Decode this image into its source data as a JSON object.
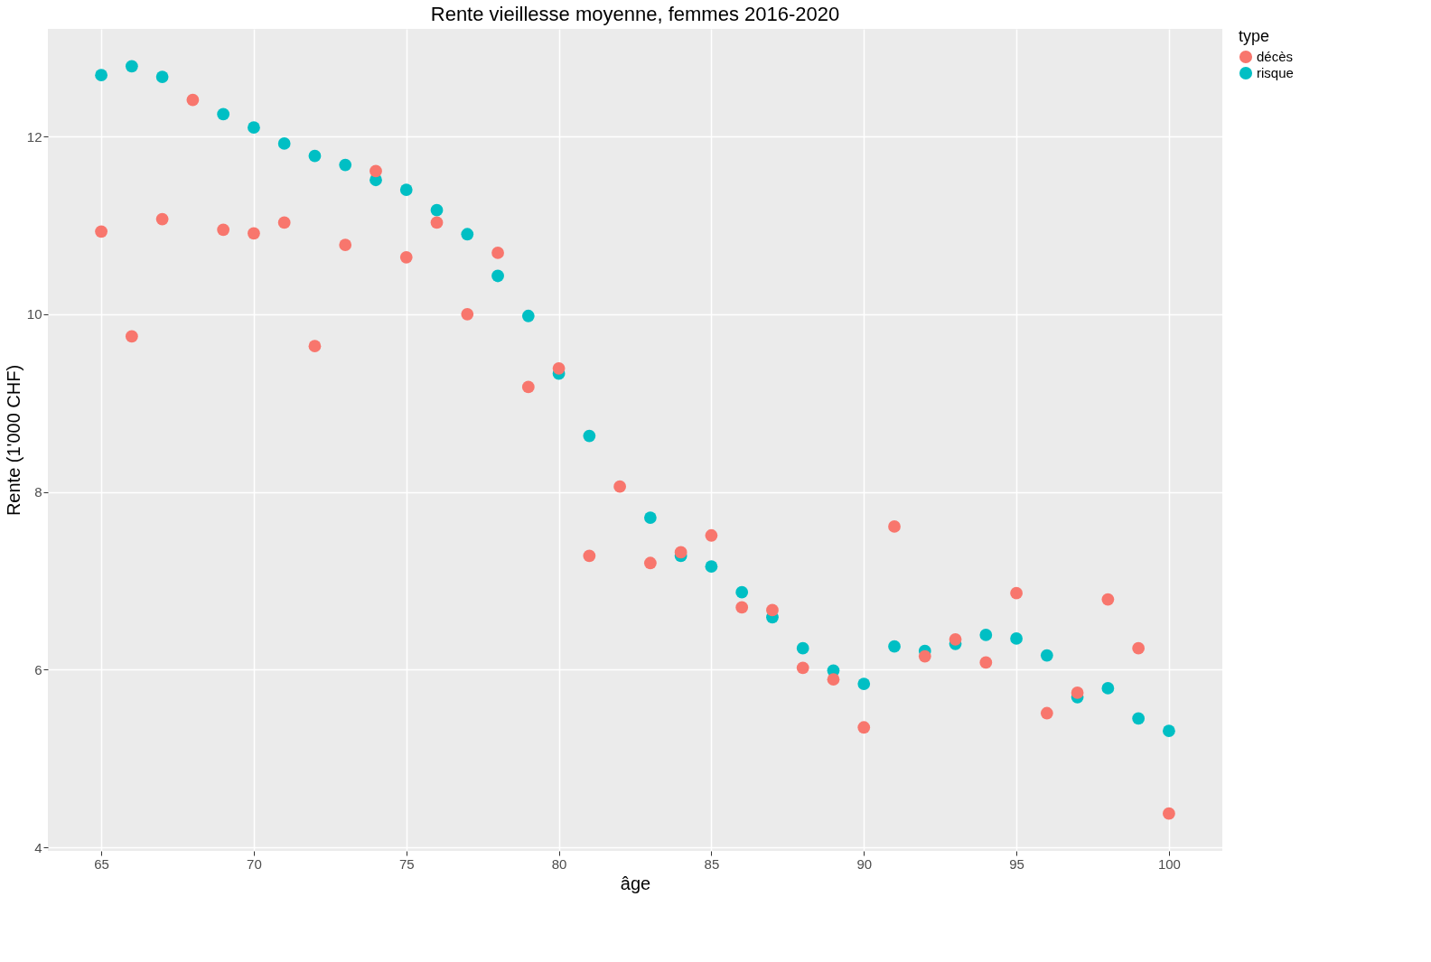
{
  "chart_data": {
    "type": "scatter",
    "title": "Rente vieillesse moyenne, femmes 2016-2020",
    "xlabel": "âge",
    "ylabel": "Rente (1'000 CHF)",
    "legend_title": "type",
    "x": [
      65,
      66,
      67,
      68,
      69,
      70,
      71,
      72,
      73,
      74,
      75,
      76,
      77,
      78,
      79,
      80,
      81,
      82,
      83,
      84,
      85,
      86,
      87,
      88,
      89,
      90,
      91,
      92,
      93,
      94,
      95,
      96,
      97,
      98,
      99,
      100
    ],
    "series": [
      {
        "name": "décès",
        "color": "#f8766d",
        "values": [
          10.93,
          9.75,
          11.07,
          12.41,
          10.95,
          10.91,
          11.03,
          9.64,
          10.78,
          11.61,
          10.64,
          11.03,
          10.0,
          10.69,
          9.18,
          9.39,
          7.28,
          8.06,
          7.2,
          7.32,
          7.51,
          6.7,
          6.67,
          6.02,
          5.89,
          5.35,
          7.61,
          6.15,
          6.34,
          6.08,
          6.86,
          5.51,
          5.74,
          6.79,
          6.24,
          4.38
        ]
      },
      {
        "name": "risque",
        "color": "#00bfc4",
        "values": [
          12.69,
          12.79,
          12.67,
          null,
          12.25,
          12.1,
          11.92,
          11.78,
          11.68,
          11.51,
          11.4,
          11.17,
          10.9,
          10.43,
          9.98,
          9.33,
          8.63,
          null,
          7.71,
          7.28,
          7.16,
          6.87,
          6.59,
          6.24,
          5.99,
          5.84,
          6.26,
          6.21,
          6.29,
          6.39,
          6.35,
          6.16,
          5.69,
          5.79,
          5.45,
          5.31
        ]
      }
    ],
    "xlim": [
      63.25,
      101.75
    ],
    "xticks": [
      65,
      70,
      75,
      80,
      85,
      90,
      95,
      100
    ],
    "ylim": [
      3.96,
      13.21
    ],
    "yticks": [
      4,
      6,
      8,
      10,
      12
    ],
    "grid": true,
    "legend": "right",
    "marker": "circle"
  }
}
